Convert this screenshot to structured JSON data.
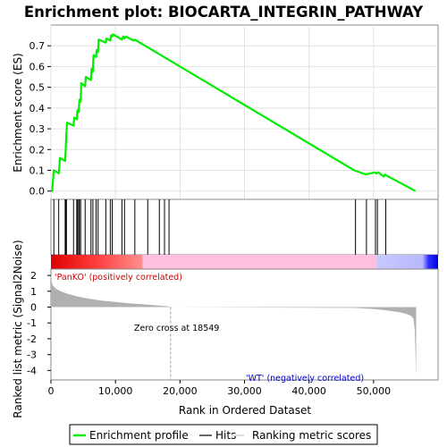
{
  "title": "Enrichment plot: BIOCARTA_INTEGRIN_PATHWAY",
  "colors": {
    "enrichment_line": "#00ee00",
    "hits": "#000000",
    "ranking_fill": "#b0b0b0",
    "positive_label": "#cc0000",
    "negative_label": "#0000cc",
    "heat_red": "#ff0000",
    "heat_pink": "#ffc0e0",
    "heat_blue": "#0000ff",
    "zero_cross_line": "#a0a0a0"
  },
  "legend": {
    "enrichment_profile": "Enrichment profile",
    "hits": "Hits",
    "ranking_metric_scores": "Ranking metric scores"
  },
  "chart_data": [
    {
      "type": "line",
      "title": "Enrichment plot: BIOCARTA_INTEGRIN_PATHWAY",
      "ylabel": "Enrichment score (ES)",
      "xlim": [
        0,
        60000
      ],
      "ylim": [
        -0.04,
        0.8
      ],
      "yticks": [
        "0.0",
        "0.1",
        "0.2",
        "0.3",
        "0.4",
        "0.5",
        "0.6",
        "0.7"
      ],
      "yticks_values": [
        0.0,
        0.1,
        0.2,
        0.3,
        0.4,
        0.5,
        0.6,
        0.7
      ],
      "grid": true,
      "series": [
        {
          "name": "Enrichment profile",
          "x": [
            0,
            200,
            450,
            1200,
            1400,
            2200,
            2300,
            2400,
            2500,
            3500,
            3600,
            4000,
            4100,
            4300,
            4400,
            4600,
            4700,
            5300,
            5400,
            6200,
            6300,
            6500,
            6600,
            7000,
            7100,
            7300,
            7400,
            8500,
            8600,
            9200,
            9300,
            9500,
            9600,
            11000,
            11200,
            11400,
            11600,
            12800,
            13000,
            47000,
            48800,
            50200,
            50400,
            50700,
            51600,
            51800,
            52000,
            56500
          ],
          "y": [
            0.0,
            0.0,
            0.1,
            0.085,
            0.16,
            0.145,
            0.21,
            0.28,
            0.33,
            0.315,
            0.355,
            0.345,
            0.39,
            0.38,
            0.44,
            0.43,
            0.52,
            0.505,
            0.55,
            0.535,
            0.59,
            0.575,
            0.655,
            0.645,
            0.68,
            0.67,
            0.73,
            0.715,
            0.735,
            0.725,
            0.75,
            0.745,
            0.755,
            0.73,
            0.745,
            0.735,
            0.745,
            0.725,
            0.73,
            0.1,
            0.08,
            0.09,
            0.085,
            0.09,
            0.07,
            0.08,
            0.075,
            0.0
          ]
        }
      ]
    },
    {
      "type": "scatter",
      "name": "Hits",
      "xlim": [
        0,
        60000
      ],
      "hits_x": [
        450,
        1200,
        2200,
        2300,
        2400,
        3500,
        4000,
        4100,
        4300,
        4400,
        4600,
        5300,
        6200,
        6500,
        7000,
        7300,
        8500,
        9200,
        9500,
        11000,
        11400,
        13000,
        15000,
        16800,
        17600,
        18300,
        47200,
        48900,
        50300,
        50600,
        51900
      ]
    },
    {
      "type": "area",
      "ylabel": "Ranked list metric (Signal2Noise)",
      "xlabel": "Rank in Ordered Dataset",
      "xlim": [
        0,
        60000
      ],
      "ylim": [
        -4.6,
        2.4
      ],
      "xticks": [
        "0",
        "10,000",
        "20,000",
        "30,000",
        "40,000",
        "50,000"
      ],
      "xticks_values": [
        0,
        10000,
        20000,
        30000,
        40000,
        50000
      ],
      "yticks": [
        "2",
        "1",
        "0",
        "-1",
        "-2",
        "-3",
        "-4"
      ],
      "yticks_values": [
        2,
        1,
        0,
        -1,
        -2,
        -3,
        -4
      ],
      "series": [
        {
          "name": "Ranking metric scores",
          "x": [
            0,
            100,
            300,
            800,
            1500,
            2500,
            4000,
            6000,
            8000,
            10000,
            12000,
            14000,
            16000,
            18000,
            18549,
            47000,
            50000,
            52000,
            54000,
            55000,
            55800,
            56200,
            56400,
            56600
          ],
          "y": [
            2.1,
            1.6,
            1.35,
            1.15,
            1.0,
            0.85,
            0.68,
            0.52,
            0.4,
            0.32,
            0.24,
            0.18,
            0.12,
            0.06,
            0.0,
            -0.05,
            -0.12,
            -0.2,
            -0.32,
            -0.42,
            -0.55,
            -0.75,
            -1.5,
            -4.4
          ]
        }
      ],
      "annotations": {
        "zero_cross": "Zero cross at 18549",
        "zero_cross_x": 18549,
        "positive": "'PanKO' (positively correlated)",
        "negative": "'WT' (negatively correlated)"
      }
    }
  ]
}
